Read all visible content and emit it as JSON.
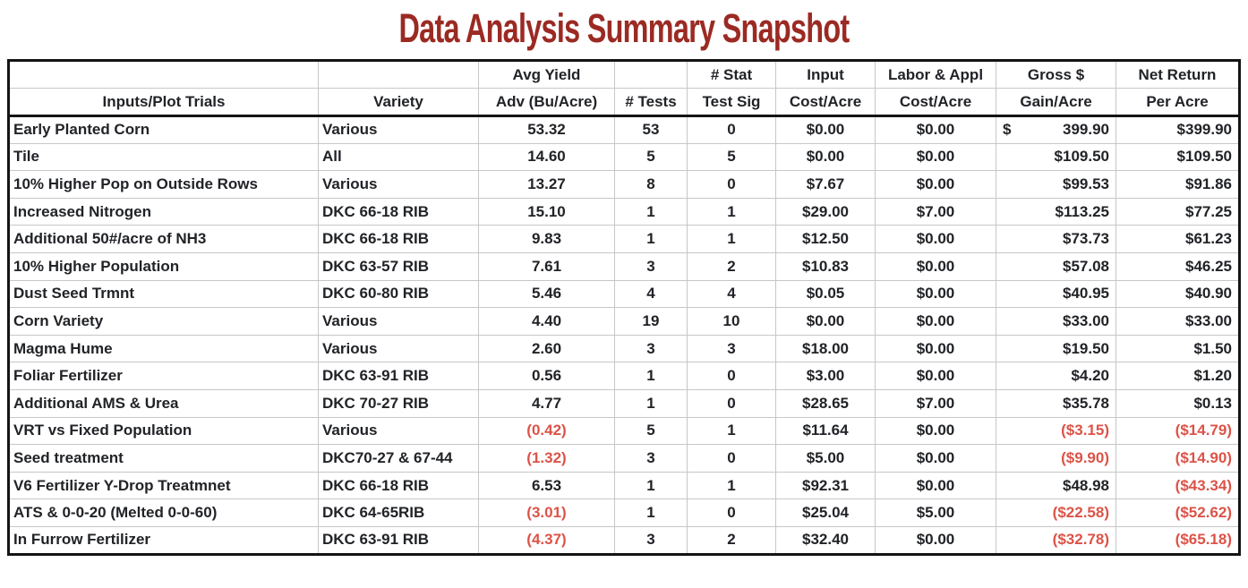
{
  "title": "Data Analysis Summary Snapshot",
  "colors": {
    "title_red": "#9b2a23",
    "text_dark": "#212327",
    "negative_red": "#dc5348",
    "gridline": "#c7c7c7",
    "outer_border": "#141414"
  },
  "chart_data": {
    "type": "table",
    "title": "Data Analysis Summary Snapshot",
    "header_row_top": [
      "",
      "",
      "Avg Yield",
      "",
      "# Stat",
      "Input",
      "Labor & Appl",
      "Gross $",
      "Net Return"
    ],
    "header_row_bottom": [
      "Inputs/Plot Trials",
      "Variety",
      "Adv (Bu/Acre)",
      "# Tests",
      "Test Sig",
      "Cost/Acre",
      "Cost/Acre",
      "Gain/Acre",
      "Per Acre"
    ],
    "negative_format_note": "values in parentheses shown in red",
    "rows": [
      [
        "Early Planted Corn",
        "Various",
        "53.32",
        "53",
        "0",
        "$0.00",
        "$0.00",
        "$ 399.90",
        "$399.90"
      ],
      [
        "Tile",
        "All",
        "14.60",
        "5",
        "5",
        "$0.00",
        "$0.00",
        "$109.50",
        "$109.50"
      ],
      [
        "10% Higher Pop on Outside Rows",
        "Various",
        "13.27",
        "8",
        "0",
        "$7.67",
        "$0.00",
        "$99.53",
        "$91.86"
      ],
      [
        "Increased Nitrogen",
        "DKC 66-18 RIB",
        "15.10",
        "1",
        "1",
        "$29.00",
        "$7.00",
        "$113.25",
        "$77.25"
      ],
      [
        "Additional 50#/acre of NH3",
        "DKC 66-18 RIB",
        "9.83",
        "1",
        "1",
        "$12.50",
        "$0.00",
        "$73.73",
        "$61.23"
      ],
      [
        "10% Higher Population",
        "DKC 63-57 RIB",
        "7.61",
        "3",
        "2",
        "$10.83",
        "$0.00",
        "$57.08",
        "$46.25"
      ],
      [
        "Dust Seed Trmnt",
        "DKC 60-80 RIB",
        "5.46",
        "4",
        "4",
        "$0.05",
        "$0.00",
        "$40.95",
        "$40.90"
      ],
      [
        "Corn Variety",
        "Various",
        "4.40",
        "19",
        "10",
        "$0.00",
        "$0.00",
        "$33.00",
        "$33.00"
      ],
      [
        "Magma Hume",
        "Various",
        "2.60",
        "3",
        "3",
        "$18.00",
        "$0.00",
        "$19.50",
        "$1.50"
      ],
      [
        "Foliar Fertilizer",
        "DKC 63-91 RIB",
        "0.56",
        "1",
        "0",
        "$3.00",
        "$0.00",
        "$4.20",
        "$1.20"
      ],
      [
        "Additional AMS & Urea",
        "DKC 70-27 RIB",
        "4.77",
        "1",
        "0",
        "$28.65",
        "$7.00",
        "$35.78",
        "$0.13"
      ],
      [
        "VRT vs Fixed Population",
        "Various",
        "(0.42)",
        "5",
        "1",
        "$11.64",
        "$0.00",
        "($3.15)",
        "($14.79)"
      ],
      [
        "Seed treatment",
        "DKC70-27 & 67-44",
        "(1.32)",
        "3",
        "0",
        "$5.00",
        "$0.00",
        "($9.90)",
        "($14.90)"
      ],
      [
        "V6 Fertilizer Y-Drop Treatmnet",
        "DKC 66-18 RIB",
        "6.53",
        "1",
        "1",
        "$92.31",
        "$0.00",
        "$48.98",
        "($43.34)"
      ],
      [
        "ATS & 0-0-20 (Melted 0-0-60)",
        "DKC 64-65RIB",
        "(3.01)",
        "1",
        "0",
        "$25.04",
        "$5.00",
        "($22.58)",
        "($52.62)"
      ],
      [
        "In Furrow Fertilizer",
        "DKC 63-91 RIB",
        "(4.37)",
        "3",
        "2",
        "$32.40",
        "$0.00",
        "($32.78)",
        "($65.18)"
      ]
    ]
  }
}
